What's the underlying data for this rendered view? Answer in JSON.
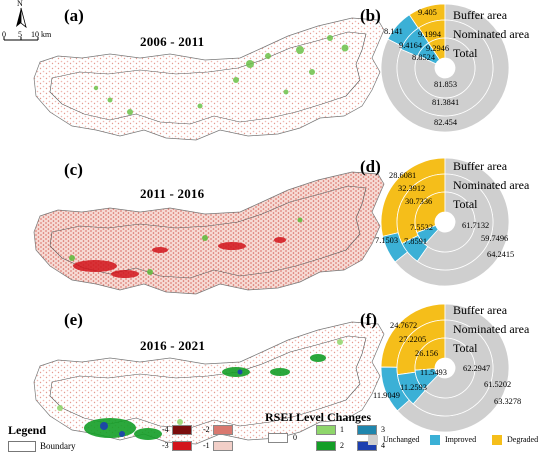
{
  "compass": {
    "north_label": "N",
    "scale": [
      "0",
      "5",
      "10 km"
    ]
  },
  "panels": [
    {
      "label": "(a)",
      "period": "2006 - 2011"
    },
    {
      "label": "(c)",
      "period": "2011 - 2016"
    },
    {
      "label": "(e)",
      "period": "2016 - 2021"
    }
  ],
  "rings": {
    "labels": [
      "Buffer area",
      "Nominated area",
      "Total"
    ],
    "colors": {
      "Unchanged": "#cfcfcf",
      "Improved": "#3bb0d6",
      "Degraded": "#f5be1a"
    }
  },
  "chart_data": [
    {
      "type": "pie",
      "label": "(b)",
      "series": [
        {
          "name": "Buffer area",
          "Unchanged": 82.454,
          "Improved": 8.141,
          "Degraded": 9.405
        },
        {
          "name": "Nominated area",
          "Unchanged": 81.3841,
          "Improved": 9.4164,
          "Degraded": 9.1994
        },
        {
          "name": "Total",
          "Unchanged": 81.853,
          "Improved": 8.8524,
          "Degraded": 9.2946
        }
      ]
    },
    {
      "type": "pie",
      "label": "(d)",
      "series": [
        {
          "name": "Buffer area",
          "Unchanged": 64.2415,
          "Improved": 7.1503,
          "Degraded": 28.6081
        },
        {
          "name": "Nominated area",
          "Unchanged": 59.7496,
          "Improved": 7.8591,
          "Degraded": 32.3912
        },
        {
          "name": "Total",
          "Unchanged": 61.7132,
          "Improved": 7.5532,
          "Degraded": 30.7336
        }
      ]
    },
    {
      "type": "pie",
      "label": "(f)",
      "series": [
        {
          "name": "Buffer area",
          "Unchanged": 63.3278,
          "Improved": 11.9049,
          "Degraded": 24.7672
        },
        {
          "name": "Nominated area",
          "Unchanged": 61.5202,
          "Improved": 11.2593,
          "Degraded": 27.2205
        },
        {
          "name": "Total",
          "Unchanged": 62.2947,
          "Improved": 11.5493,
          "Degraded": 26.156
        }
      ]
    }
  ],
  "legend": {
    "title": "Legend",
    "boundary": "Boundary",
    "rsei_title": "RSEI Level Changes",
    "items": [
      {
        "label": "-4",
        "color": "#7a0d0d"
      },
      {
        "label": "-3",
        "color": "#d2141b"
      },
      {
        "label": "-2",
        "color": "#d9786f"
      },
      {
        "label": "-1",
        "color": "#f2cfc8"
      },
      {
        "label": "0",
        "color": "#ffffff"
      },
      {
        "label": "1",
        "color": "#8fd66b"
      },
      {
        "label": "2",
        "color": "#149e27"
      },
      {
        "label": "3",
        "color": "#1f86ad"
      },
      {
        "label": "4",
        "color": "#1c3fb0"
      }
    ],
    "pie_legend": [
      "Unchanged",
      "Improved",
      "Degraded"
    ]
  }
}
